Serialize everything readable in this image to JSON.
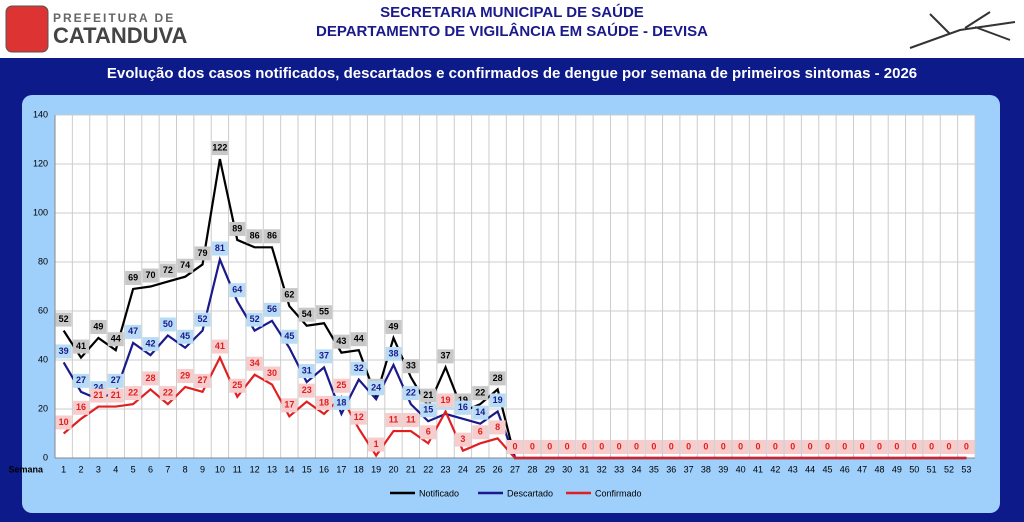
{
  "header": {
    "logo_top": "PREFEITURA DE",
    "logo_bottom": "CATANDUVA",
    "line1": "SECRETARIA MUNICIPAL DE SAÚDE",
    "line2": "DEPARTAMENTO DE VIGILÂNCIA EM SAÚDE - DEVISA"
  },
  "chart_data": {
    "type": "line",
    "title": "Evolução dos casos notificados, descartados e confirmados de dengue por semana de primeiros sintomas - 2026",
    "x_label": "Semana",
    "categories": [
      "1",
      "2",
      "3",
      "4",
      "5",
      "6",
      "7",
      "8",
      "9",
      "10",
      "11",
      "12",
      "13",
      "14",
      "15",
      "16",
      "17",
      "18",
      "19",
      "20",
      "21",
      "22",
      "23",
      "24",
      "25",
      "26",
      "27",
      "28",
      "29",
      "30",
      "31",
      "32",
      "33",
      "34",
      "35",
      "36",
      "37",
      "38",
      "39",
      "40",
      "41",
      "42",
      "43",
      "44",
      "45",
      "46",
      "47",
      "48",
      "49",
      "50",
      "51",
      "52",
      "53"
    ],
    "series": [
      {
        "name": "Notificado",
        "color": "#000000",
        "label_bg": "#c8c8c8",
        "values": [
          52,
          41,
          49,
          44,
          69,
          70,
          72,
          74,
          79,
          122,
          89,
          86,
          86,
          62,
          54,
          55,
          43,
          44,
          25,
          49,
          33,
          21,
          37,
          19,
          22,
          28,
          0,
          0,
          0,
          0,
          0,
          0,
          0,
          0,
          0,
          0,
          0,
          0,
          0,
          0,
          0,
          0,
          0,
          0,
          0,
          0,
          0,
          0,
          0,
          0,
          0,
          0,
          0
        ]
      },
      {
        "name": "Descartado",
        "color": "#1a1a8c",
        "label_bg": "#b8dcf5",
        "values": [
          39,
          27,
          24,
          27,
          47,
          42,
          50,
          45,
          52,
          81,
          64,
          52,
          56,
          45,
          31,
          37,
          18,
          32,
          24,
          38,
          22,
          15,
          18,
          16,
          14,
          19,
          0,
          0,
          0,
          0,
          0,
          0,
          0,
          0,
          0,
          0,
          0,
          0,
          0,
          0,
          0,
          0,
          0,
          0,
          0,
          0,
          0,
          0,
          0,
          0,
          0,
          0,
          0
        ]
      },
      {
        "name": "Confirmado",
        "color": "#e02020",
        "label_bg": "#f7cccc",
        "values": [
          10,
          16,
          21,
          21,
          22,
          28,
          22,
          29,
          27,
          41,
          25,
          34,
          30,
          17,
          23,
          18,
          25,
          12,
          1,
          11,
          11,
          6,
          19,
          3,
          6,
          8,
          0,
          0,
          0,
          0,
          0,
          0,
          0,
          0,
          0,
          0,
          0,
          0,
          0,
          0,
          0,
          0,
          0,
          0,
          0,
          0,
          0,
          0,
          0,
          0,
          0,
          0,
          0
        ]
      }
    ],
    "ylim": [
      0,
      140
    ],
    "yticks": [
      0,
      20,
      40,
      60,
      80,
      100,
      120,
      140
    ],
    "grid": true
  }
}
